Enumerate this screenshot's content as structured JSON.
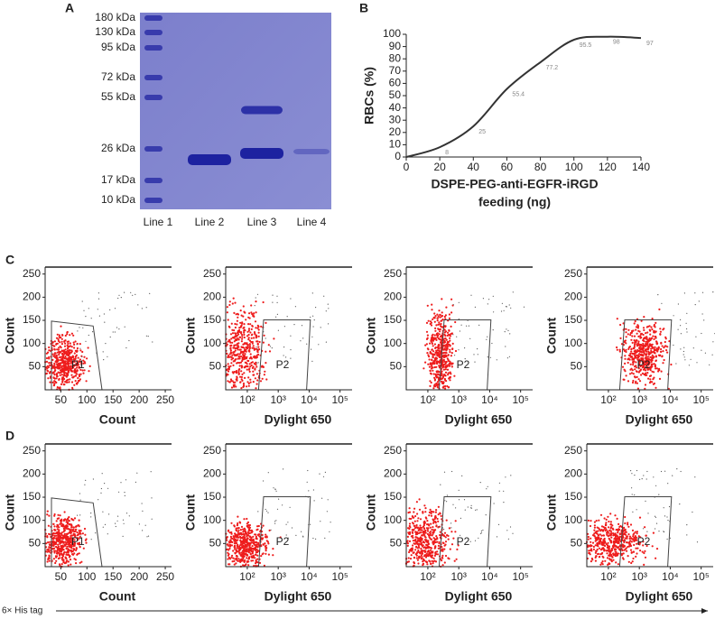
{
  "gel": {
    "panel_label": "A",
    "markers": [
      "180 kDa",
      "130 kDa",
      "95 kDa",
      "72 kDa",
      "55 kDa",
      "26 kDa",
      "17 kDa",
      "10 kDa"
    ],
    "lanes": [
      "Line 1",
      "Line 2",
      "Line 3",
      "Line 4"
    ]
  },
  "chart_data": {
    "type": "line",
    "panel_label": "B",
    "y_label": "RBCs (%)",
    "x_label": [
      "DSPE-PEG-anti-EGFR-iRGD",
      "feeding (ng)"
    ],
    "x": [
      0,
      20,
      40,
      60,
      80,
      100,
      120,
      140
    ],
    "series": [
      {
        "name": "RBCs",
        "color": "#333333",
        "values": [
          0,
          8,
          25,
          55.4,
          77.2,
          95.5,
          98,
          97
        ]
      }
    ],
    "xlim": [
      0,
      140
    ],
    "xticks": [
      0,
      20,
      40,
      60,
      80,
      100,
      120,
      140
    ],
    "ylim": [
      0,
      100
    ],
    "yticks": [
      0,
      10,
      20,
      30,
      40,
      50,
      60,
      70,
      80,
      90,
      100
    ]
  },
  "flow": {
    "rows": [
      "C",
      "D"
    ],
    "plots": [
      {
        "type": "scatter",
        "y_label": "Count",
        "x_label": "Count",
        "gate": "P1",
        "xscale": "linear",
        "xlim": [
          20,
          262
        ],
        "xticks": [
          50,
          100,
          150,
          200,
          250
        ],
        "ylim": [
          0,
          265
        ],
        "yticks": [
          50,
          100,
          150,
          200,
          250
        ]
      },
      {
        "type": "scatter",
        "y_label": "Count",
        "x_label": "Dylight 650",
        "gate": "P2",
        "xscale": "log",
        "xlim": [
          20,
          245000
        ],
        "xticks": [
          {
            "value": 100,
            "label": "10²"
          },
          {
            "value": 1000,
            "label": "10³"
          },
          {
            "value": 10000,
            "label": "10⁴"
          },
          {
            "value": 100000,
            "label": "10⁵"
          }
        ],
        "ylim": [
          0,
          265
        ],
        "yticks": [
          50,
          100,
          150,
          200,
          250
        ]
      },
      {
        "type": "scatter",
        "y_label": "Count",
        "x_label": "Dylight 650",
        "gate": "P2",
        "xscale": "log",
        "xlim": [
          20,
          245000
        ],
        "xticks": [
          {
            "value": 100,
            "label": "10²"
          },
          {
            "value": 1000,
            "label": "10³"
          },
          {
            "value": 10000,
            "label": "10⁴"
          },
          {
            "value": 100000,
            "label": "10⁵"
          }
        ],
        "ylim": [
          0,
          265
        ],
        "yticks": [
          50,
          100,
          150,
          200,
          250
        ]
      },
      {
        "type": "scatter",
        "y_label": "Count",
        "x_label": "Dylight 650",
        "gate": "P2",
        "xscale": "log",
        "xlim": [
          20,
          245000
        ],
        "xticks": [
          {
            "value": 100,
            "label": "10²"
          },
          {
            "value": 1000,
            "label": "10³"
          },
          {
            "value": 10000,
            "label": "10⁴"
          },
          {
            "value": 100000,
            "label": "10⁵"
          }
        ],
        "ylim": [
          0,
          265
        ],
        "yticks": [
          50,
          100,
          150,
          200,
          250
        ]
      },
      {
        "type": "scatter",
        "y_label": "Count",
        "x_label": "Count",
        "gate": "P1",
        "xscale": "linear",
        "xlim": [
          20,
          262
        ],
        "xticks": [
          50,
          100,
          150,
          200,
          250
        ],
        "ylim": [
          0,
          265
        ],
        "yticks": [
          50,
          100,
          150,
          200,
          250
        ]
      },
      {
        "type": "scatter",
        "y_label": "Count",
        "x_label": "Dylight 650",
        "gate": "P2",
        "xscale": "log",
        "xlim": [
          20,
          245000
        ],
        "xticks": [
          {
            "value": 100,
            "label": "10²"
          },
          {
            "value": 1000,
            "label": "10³"
          },
          {
            "value": 10000,
            "label": "10⁴"
          },
          {
            "value": 100000,
            "label": "10⁵"
          }
        ],
        "ylim": [
          0,
          265
        ],
        "yticks": [
          50,
          100,
          150,
          200,
          250
        ]
      },
      {
        "type": "scatter",
        "y_label": "Count",
        "x_label": "Dylight 650",
        "gate": "P2",
        "xscale": "log",
        "xlim": [
          20,
          245000
        ],
        "xticks": [
          {
            "value": 100,
            "label": "10²"
          },
          {
            "value": 1000,
            "label": "10³"
          },
          {
            "value": 10000,
            "label": "10⁴"
          },
          {
            "value": 100000,
            "label": "10⁵"
          }
        ],
        "ylim": [
          0,
          265
        ],
        "yticks": [
          50,
          100,
          150,
          200,
          250
        ]
      },
      {
        "type": "scatter",
        "y_label": "Count",
        "x_label": "Dylight 650",
        "gate": "P2",
        "xscale": "log",
        "xlim": [
          20,
          245000
        ],
        "xticks": [
          {
            "value": 100,
            "label": "10²"
          },
          {
            "value": 1000,
            "label": "10³"
          },
          {
            "value": 10000,
            "label": "10⁴"
          },
          {
            "value": 100000,
            "label": "10⁵"
          }
        ],
        "ylim": [
          0,
          265
        ],
        "yticks": [
          50,
          100,
          150,
          200,
          250
        ]
      }
    ]
  },
  "footer": "6× His tag"
}
